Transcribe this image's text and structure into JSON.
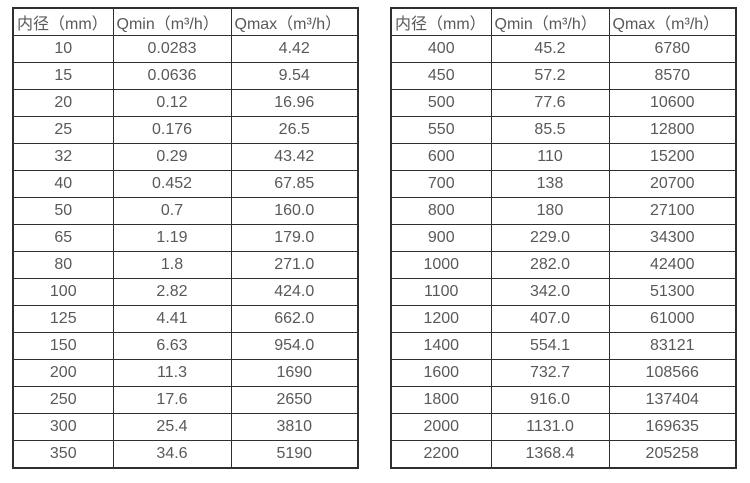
{
  "colors": {
    "background": "#ffffff",
    "border": "#2f2f2f",
    "text": "#595959"
  },
  "tables": [
    {
      "columns": [
        "内径（mm）",
        "Qmin（m³/h）",
        "Qmax（m³/h）"
      ],
      "rows": [
        [
          "10",
          "0.0283",
          "4.42"
        ],
        [
          "15",
          "0.0636",
          "9.54"
        ],
        [
          "20",
          "0.12",
          "16.96"
        ],
        [
          "25",
          "0.176",
          "26.5"
        ],
        [
          "32",
          "0.29",
          "43.42"
        ],
        [
          "40",
          "0.452",
          "67.85"
        ],
        [
          "50",
          "0.7",
          "160.0"
        ],
        [
          "65",
          "1.19",
          "179.0"
        ],
        [
          "80",
          "1.8",
          "271.0"
        ],
        [
          "100",
          "2.82",
          "424.0"
        ],
        [
          "125",
          "4.41",
          "662.0"
        ],
        [
          "150",
          "6.63",
          "954.0"
        ],
        [
          "200",
          "11.3",
          "1690"
        ],
        [
          "250",
          "17.6",
          "2650"
        ],
        [
          "300",
          "25.4",
          "3810"
        ],
        [
          "350",
          "34.6",
          "5190"
        ]
      ]
    },
    {
      "columns": [
        "内径（mm）",
        "Qmin（m³/h）",
        "Qmax（m³/h）"
      ],
      "rows": [
        [
          "400",
          "45.2",
          "6780"
        ],
        [
          "450",
          "57.2",
          "8570"
        ],
        [
          "500",
          "77.6",
          "10600"
        ],
        [
          "550",
          "85.5",
          "12800"
        ],
        [
          "600",
          "110",
          "15200"
        ],
        [
          "700",
          "138",
          "20700"
        ],
        [
          "800",
          "180",
          "27100"
        ],
        [
          "900",
          "229.0",
          "34300"
        ],
        [
          "1000",
          "282.0",
          "42400"
        ],
        [
          "1100",
          "342.0",
          "51300"
        ],
        [
          "1200",
          "407.0",
          "61000"
        ],
        [
          "1400",
          "554.1",
          "83121"
        ],
        [
          "1600",
          "732.7",
          "108566"
        ],
        [
          "1800",
          "916.0",
          "137404"
        ],
        [
          "2000",
          "1131.0",
          "169635"
        ],
        [
          "2200",
          "1368.4",
          "205258"
        ]
      ]
    }
  ]
}
